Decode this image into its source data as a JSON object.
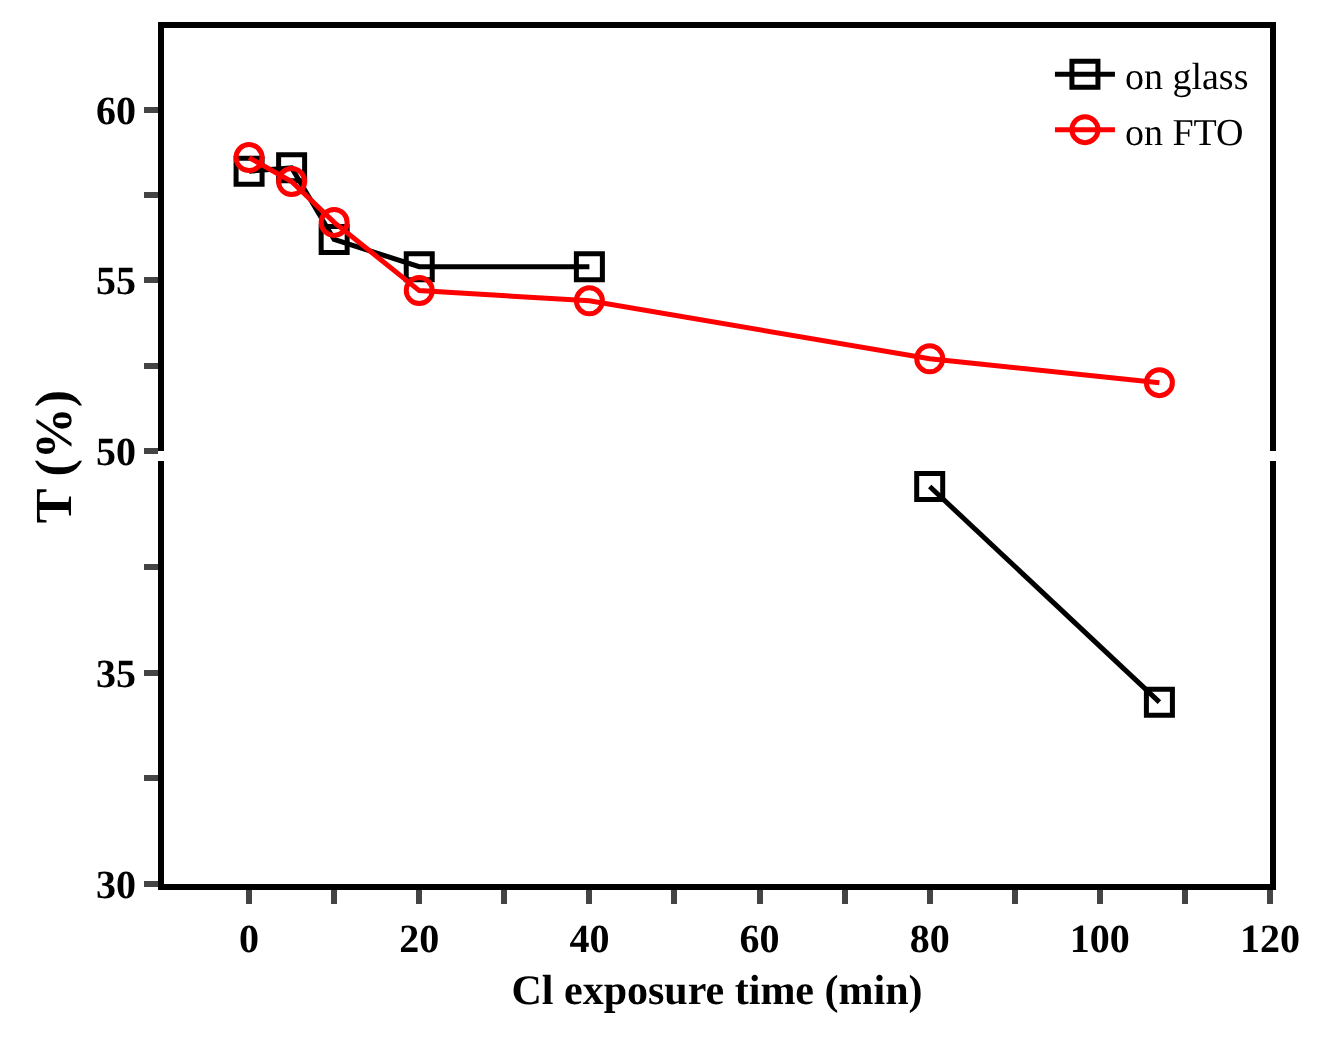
{
  "chart_data": [
    {
      "type": "line",
      "ylabel": "T (%)",
      "x": [
        0,
        5,
        10,
        20,
        40,
        80,
        107
      ],
      "xlim": [
        -10,
        120
      ],
      "ylim": [
        50,
        62.4
      ],
      "yticks": [
        50,
        {
          "value": 52.5,
          "label": null
        },
        55,
        {
          "value": 57.5,
          "label": null
        },
        60
      ],
      "tick_labels": "y",
      "legend": "top right",
      "line_style": "solid",
      "series": [
        {
          "name": "on glass",
          "color": "#000000",
          "marker": "square",
          "values": [
            58.2,
            58.3,
            56.2,
            55.4,
            55.4,
            null,
            null
          ]
        },
        {
          "name": "on FTO",
          "color": "#ff0000",
          "marker": "circle",
          "values": [
            58.6,
            57.9,
            56.7,
            54.7,
            54.4,
            52.7,
            52.0
          ]
        }
      ]
    },
    {
      "type": "line",
      "xlabel": "Cl exposure time (min)",
      "x": [
        80,
        107
      ],
      "xlim": [
        -10,
        120
      ],
      "xticks": [
        0,
        {
          "value": 10,
          "label": null
        },
        20,
        {
          "value": 30,
          "label": null
        },
        40,
        {
          "value": 50,
          "label": null
        },
        60,
        {
          "value": 70,
          "label": null
        },
        80,
        {
          "value": 90,
          "label": null
        },
        100,
        {
          "value": 110,
          "label": null
        },
        120
      ],
      "ylim": [
        30,
        40
      ],
      "yticks": [
        30,
        {
          "value": 32.5,
          "label": null
        },
        35,
        {
          "value": 37.5,
          "label": null
        }
      ],
      "line_style": "solid",
      "series": [
        {
          "color": "#000000",
          "marker": "square",
          "values": [
            39.4,
            34.3
          ]
        }
      ]
    }
  ]
}
